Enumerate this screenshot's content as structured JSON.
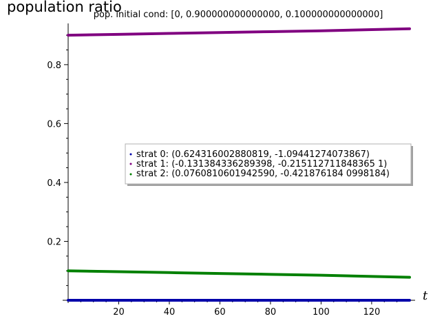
{
  "chart_data": {
    "type": "line",
    "title": "pop. initial cond: [0, 0.900000000000000, 0.100000000000000]",
    "ylabel": "population ratio",
    "xlabel": "t",
    "xlim": [
      0,
      135
    ],
    "ylim": [
      0,
      0.94
    ],
    "x_ticks": [
      20,
      40,
      60,
      80,
      100,
      120
    ],
    "x_tick_labels": [
      "20",
      "40",
      "60",
      "80",
      "100",
      "120"
    ],
    "y_ticks": [
      0.2,
      0.4,
      0.6,
      0.8
    ],
    "y_tick_labels": [
      "0.2",
      "0.4",
      "0.6",
      "0.8"
    ],
    "legend_position": "center-right",
    "grid": false,
    "series": [
      {
        "name": "strat 0: (0.624316002880819, -1.09441274073867)",
        "color": "#0000aa",
        "points": [
          [
            0,
            0.0
          ],
          [
            135,
            0.0
          ]
        ]
      },
      {
        "name": "strat 1: (-0.131384336289398, -0.215112711848365 1)",
        "color": "#800080",
        "points": [
          [
            0,
            0.9
          ],
          [
            20,
            0.903
          ],
          [
            40,
            0.906
          ],
          [
            60,
            0.909
          ],
          [
            80,
            0.912
          ],
          [
            100,
            0.915
          ],
          [
            120,
            0.919
          ],
          [
            135,
            0.922
          ]
        ]
      },
      {
        "name": "strat 2: (0.0760810601942590, -0.421876184 0998184)",
        "color": "#008000",
        "points": [
          [
            0,
            0.1
          ],
          [
            20,
            0.097
          ],
          [
            40,
            0.094
          ],
          [
            60,
            0.091
          ],
          [
            80,
            0.088
          ],
          [
            100,
            0.085
          ],
          [
            120,
            0.081
          ],
          [
            135,
            0.078
          ]
        ]
      }
    ]
  }
}
